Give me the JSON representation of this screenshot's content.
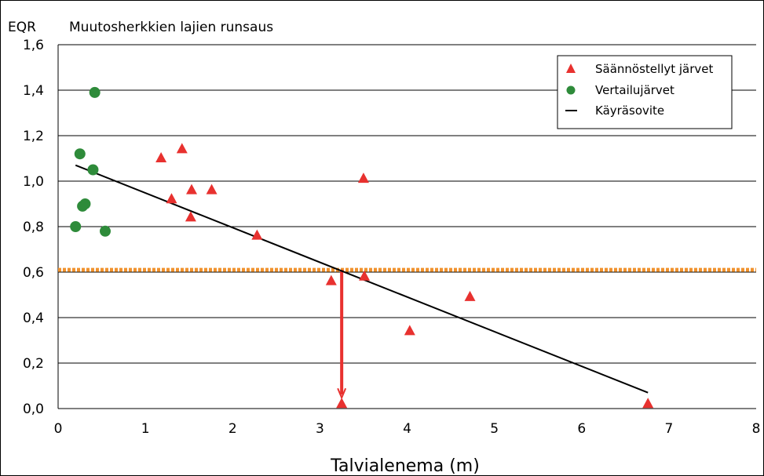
{
  "chart_data": {
    "type": "scatter",
    "title": "Muutosherkkien lajien runsaus",
    "ylabel": "EQR",
    "xlabel": "Talvialenema (m)",
    "xlim": [
      0,
      8
    ],
    "ylim": [
      0,
      1.6
    ],
    "x_ticks": [
      "0",
      "1",
      "2",
      "3",
      "4",
      "5",
      "6",
      "7",
      "8"
    ],
    "y_ticks": [
      "0,0",
      "0,2",
      "0,4",
      "0,6",
      "0,8",
      "1,0",
      "1,2",
      "1,4",
      "1,6"
    ],
    "grid": "horizontal",
    "legend_position": "top-right",
    "series": [
      {
        "name": "Säännöstellyt järvet",
        "marker": "triangle",
        "color": "#e8312f",
        "points": [
          [
            1.18,
            1.1
          ],
          [
            1.42,
            1.14
          ],
          [
            1.3,
            0.92
          ],
          [
            1.53,
            0.96
          ],
          [
            1.76,
            0.96
          ],
          [
            1.52,
            0.84
          ],
          [
            2.28,
            0.76
          ],
          [
            3.5,
            1.01
          ],
          [
            3.13,
            0.56
          ],
          [
            3.51,
            0.58
          ],
          [
            4.72,
            0.49
          ],
          [
            4.03,
            0.34
          ],
          [
            3.25,
            0.02
          ],
          [
            6.76,
            0.02
          ]
        ]
      },
      {
        "name": "Vertailujärvet",
        "marker": "circle",
        "color": "#2e8b3a",
        "points": [
          [
            0.42,
            1.39
          ],
          [
            0.25,
            1.12
          ],
          [
            0.4,
            1.05
          ],
          [
            0.28,
            0.89
          ],
          [
            0.31,
            0.9
          ],
          [
            0.2,
            0.8
          ],
          [
            0.54,
            0.78
          ]
        ]
      },
      {
        "name": "Käyräsovite",
        "type": "line",
        "color": "#000000",
        "points": [
          [
            0.2,
            1.07
          ],
          [
            6.76,
            0.07
          ]
        ]
      }
    ],
    "annotations": {
      "threshold_y": 0.61,
      "threshold_color": "#f0922e",
      "arrow": {
        "x": 3.25,
        "from_y": 0.61,
        "to_y": 0.02,
        "color": "#e8312f"
      }
    }
  }
}
